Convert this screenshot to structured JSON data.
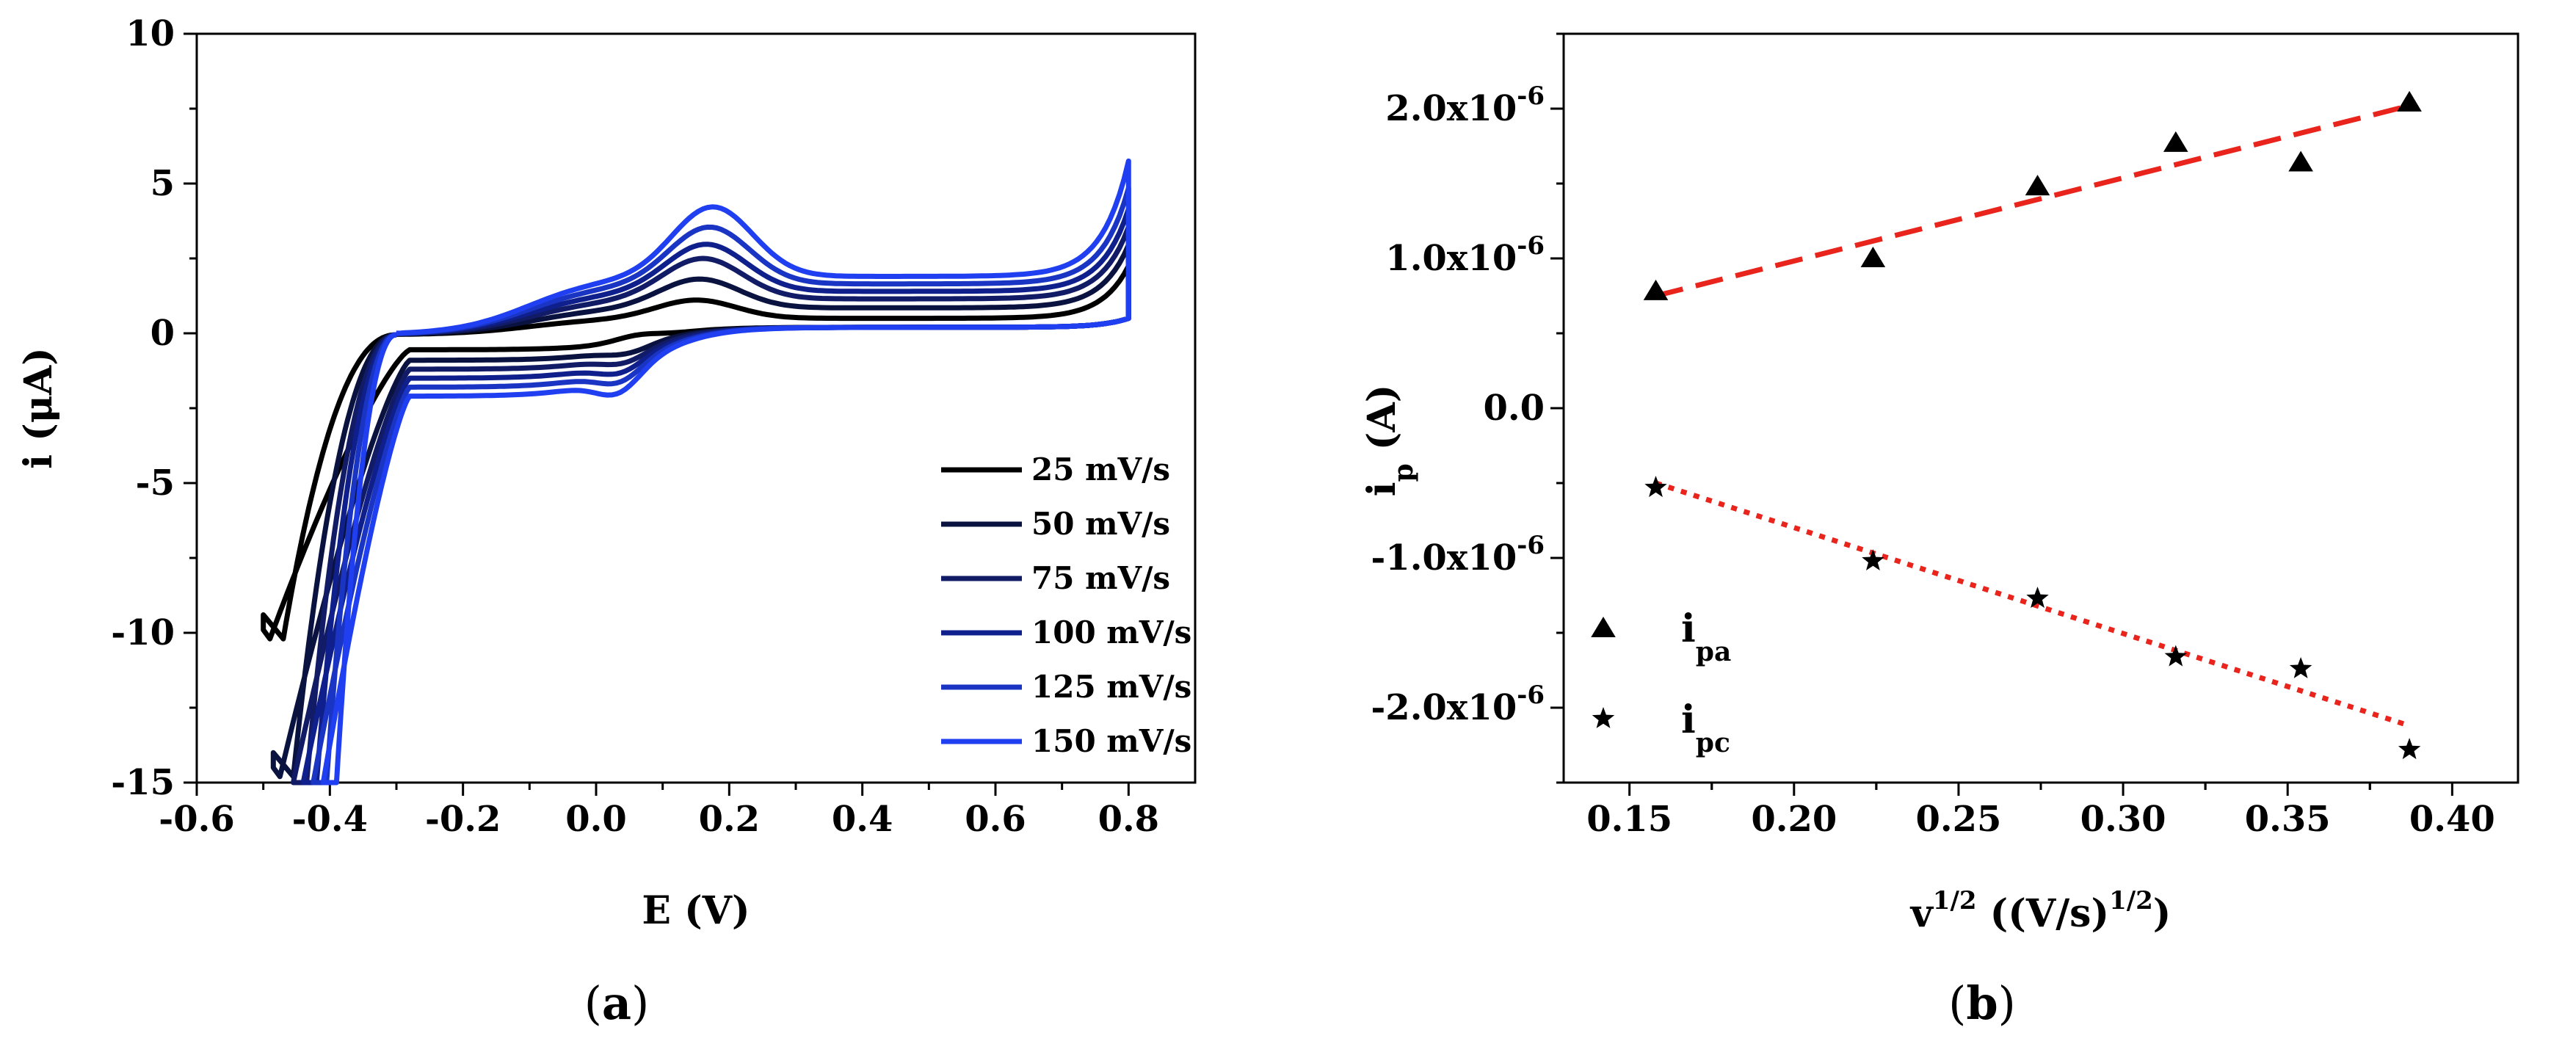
{
  "chart_data": [
    {
      "id": "a",
      "type": "line",
      "caption": "a",
      "xlabel": "E (V)",
      "ylabel": "i (μA)",
      "xlim": [
        -0.6,
        0.9
      ],
      "ylim": [
        -15,
        10
      ],
      "xticks": [
        "-0.6",
        "-0.4",
        "-0.2",
        "0.0",
        "0.2",
        "0.4",
        "0.6",
        "0.8"
      ],
      "yticks": [
        "10",
        "5",
        "0",
        "-5",
        "-10",
        "-15"
      ],
      "legend_position": "bottom-right",
      "series": [
        {
          "name": "25 mV/s",
          "color": "#000000",
          "anodic_peak": [
            0.15,
            1.0
          ],
          "cathodic_peak": [
            0.06,
            -0.6
          ],
          "fwd_base": -0.75,
          "rev_base": 0.55,
          "end_high": 2.3,
          "low_i": -10.2,
          "low_e": -0.49
        },
        {
          "name": "50 mV/s",
          "color": "#0a1240",
          "anodic_peak": [
            0.155,
            1.6
          ],
          "cathodic_peak": [
            0.05,
            -1.3
          ],
          "fwd_base": -1.1,
          "rev_base": 0.9,
          "end_high": 3.0,
          "low_i": -14.8,
          "low_e": -0.475
        },
        {
          "name": "75 mV/s",
          "color": "#121c66",
          "anodic_peak": [
            0.16,
            2.2
          ],
          "cathodic_peak": [
            0.045,
            -1.7
          ],
          "fwd_base": -1.4,
          "rev_base": 1.2,
          "end_high": 3.6,
          "low_i": -15,
          "low_e": -0.455
        },
        {
          "name": "100 mV/s",
          "color": "#0f1f8c",
          "anodic_peak": [
            0.165,
            2.6
          ],
          "cathodic_peak": [
            0.04,
            -2.1
          ],
          "fwd_base": -1.7,
          "rev_base": 1.45,
          "end_high": 4.2,
          "low_i": -15,
          "low_e": -0.44
        },
        {
          "name": "125 mV/s",
          "color": "#1a35c4",
          "anodic_peak": [
            0.17,
            3.1
          ],
          "cathodic_peak": [
            0.038,
            -2.5
          ],
          "fwd_base": -2.0,
          "rev_base": 1.7,
          "end_high": 4.9,
          "low_i": -15,
          "low_e": -0.425
        },
        {
          "name": "150 mV/s",
          "color": "#1f3ff0",
          "anodic_peak": [
            0.175,
            3.7
          ],
          "cathodic_peak": [
            0.035,
            -2.95
          ],
          "fwd_base": -2.3,
          "rev_base": 1.95,
          "end_high": 5.8,
          "low_i": -15,
          "low_e": -0.41
        }
      ]
    },
    {
      "id": "b",
      "type": "scatter",
      "caption": "b",
      "xlabel": "v^1/2 ((V/s)^1/2)",
      "ylabel": "i_p (A)",
      "xlim": [
        0.13,
        0.42
      ],
      "ylim": [
        -2.5e-06,
        2.5e-06
      ],
      "xticks": [
        "0.15",
        "0.20",
        "0.25",
        "0.30",
        "0.35",
        "0.40"
      ],
      "yticks": [
        "2.0x10-6",
        "1.0x10-6",
        "0.0",
        "-1.0x10-6",
        "-2.0x10-6"
      ],
      "legend_position": "bottom-left",
      "series": [
        {
          "name": "i_pa",
          "marker": "triangle",
          "x": [
            0.158,
            0.224,
            0.274,
            0.316,
            0.354,
            0.387
          ],
          "y": [
            7.8e-07,
            1e-06,
            1.48e-06,
            1.77e-06,
            1.64e-06,
            2.04e-06
          ],
          "fit": {
            "x": [
              0.158,
              0.387
            ],
            "y": [
              7.5e-07,
              2.02e-06
            ],
            "style": "dashed",
            "color": "#e8241c"
          }
        },
        {
          "name": "i_pc",
          "marker": "star",
          "x": [
            0.158,
            0.224,
            0.274,
            0.316,
            0.354,
            0.387
          ],
          "y": [
            -5.3e-07,
            -1.02e-06,
            -1.27e-06,
            -1.66e-06,
            -1.74e-06,
            -2.28e-06
          ],
          "fit": {
            "x": [
              0.158,
              0.387
            ],
            "y": [
              -5e-07,
              -2.12e-06
            ],
            "style": "dotted",
            "color": "#e8241c"
          }
        }
      ]
    }
  ]
}
